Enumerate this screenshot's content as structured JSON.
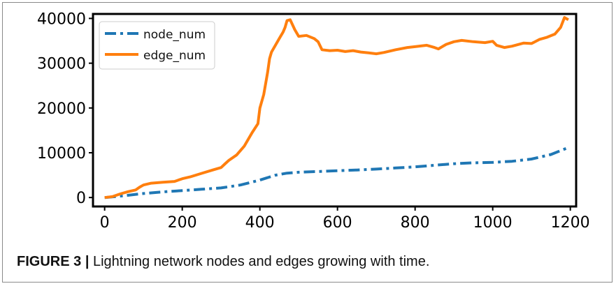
{
  "chart_data": {
    "type": "line",
    "xlim": [
      -30,
      1215
    ],
    "ylim": [
      -2000,
      41000
    ],
    "x_ticks": [
      0,
      200,
      400,
      600,
      800,
      1000,
      1200
    ],
    "y_ticks": [
      0,
      10000,
      20000,
      30000,
      40000
    ],
    "grid": false,
    "legend_position": "top-left",
    "series": [
      {
        "name": "node_num",
        "color": "#1f77b4",
        "style": "dashdot",
        "points": [
          [
            0,
            0
          ],
          [
            50,
            400
          ],
          [
            100,
            900
          ],
          [
            150,
            1250
          ],
          [
            200,
            1550
          ],
          [
            250,
            1850
          ],
          [
            300,
            2150
          ],
          [
            350,
            2800
          ],
          [
            400,
            3900
          ],
          [
            440,
            5000
          ],
          [
            470,
            5450
          ],
          [
            500,
            5650
          ],
          [
            550,
            5800
          ],
          [
            600,
            6000
          ],
          [
            650,
            6150
          ],
          [
            700,
            6350
          ],
          [
            750,
            6600
          ],
          [
            800,
            6850
          ],
          [
            850,
            7200
          ],
          [
            900,
            7550
          ],
          [
            950,
            7750
          ],
          [
            1000,
            7850
          ],
          [
            1050,
            8100
          ],
          [
            1100,
            8600
          ],
          [
            1150,
            9600
          ],
          [
            1190,
            11000
          ]
        ]
      },
      {
        "name": "edge_num",
        "color": "#ff7f0e",
        "style": "solid",
        "points": [
          [
            0,
            0
          ],
          [
            20,
            200
          ],
          [
            40,
            800
          ],
          [
            60,
            1300
          ],
          [
            80,
            1700
          ],
          [
            90,
            2300
          ],
          [
            100,
            2800
          ],
          [
            120,
            3200
          ],
          [
            150,
            3400
          ],
          [
            180,
            3600
          ],
          [
            200,
            4200
          ],
          [
            220,
            4600
          ],
          [
            250,
            5400
          ],
          [
            280,
            6200
          ],
          [
            300,
            6700
          ],
          [
            310,
            7500
          ],
          [
            320,
            8300
          ],
          [
            340,
            9500
          ],
          [
            360,
            11500
          ],
          [
            370,
            13000
          ],
          [
            380,
            14500
          ],
          [
            395,
            16500
          ],
          [
            400,
            20000
          ],
          [
            410,
            23000
          ],
          [
            420,
            28000
          ],
          [
            425,
            31000
          ],
          [
            430,
            32500
          ],
          [
            440,
            34000
          ],
          [
            450,
            35500
          ],
          [
            460,
            37000
          ],
          [
            465,
            38000
          ],
          [
            470,
            39500
          ],
          [
            478,
            39700
          ],
          [
            490,
            37500
          ],
          [
            500,
            36000
          ],
          [
            520,
            36200
          ],
          [
            540,
            35500
          ],
          [
            550,
            34800
          ],
          [
            560,
            33000
          ],
          [
            580,
            32800
          ],
          [
            600,
            32900
          ],
          [
            620,
            32600
          ],
          [
            640,
            32800
          ],
          [
            660,
            32500
          ],
          [
            680,
            32300
          ],
          [
            700,
            32100
          ],
          [
            720,
            32400
          ],
          [
            750,
            33000
          ],
          [
            780,
            33500
          ],
          [
            800,
            33700
          ],
          [
            830,
            34000
          ],
          [
            850,
            33500
          ],
          [
            860,
            33200
          ],
          [
            880,
            34200
          ],
          [
            900,
            34800
          ],
          [
            920,
            35100
          ],
          [
            950,
            34800
          ],
          [
            980,
            34600
          ],
          [
            1000,
            34900
          ],
          [
            1010,
            34000
          ],
          [
            1030,
            33500
          ],
          [
            1050,
            33800
          ],
          [
            1080,
            34500
          ],
          [
            1100,
            34400
          ],
          [
            1120,
            35300
          ],
          [
            1140,
            35800
          ],
          [
            1160,
            36500
          ],
          [
            1175,
            38000
          ],
          [
            1185,
            40200
          ],
          [
            1195,
            39700
          ]
        ]
      }
    ]
  },
  "caption": {
    "label": "FIGURE 3",
    "separator": "|",
    "text": "Lightning network nodes and edges growing with time."
  }
}
